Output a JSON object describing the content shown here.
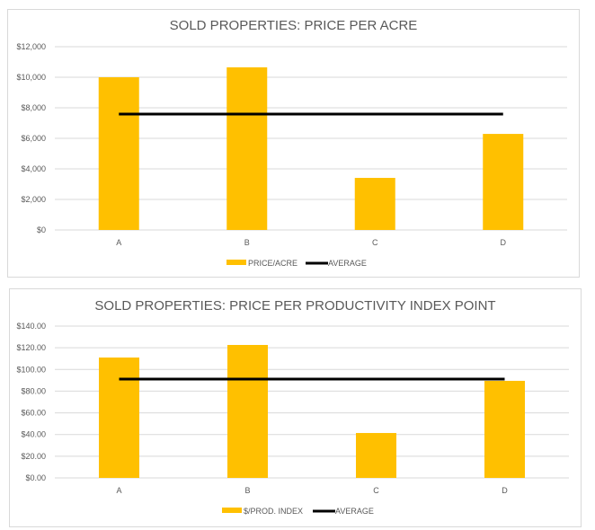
{
  "chart_data": [
    {
      "type": "bar",
      "title": "SOLD PROPERTIES: PRICE PER ACRE",
      "categories": [
        "A",
        "B",
        "C",
        "D"
      ],
      "series": [
        {
          "name": "PRICE/ACRE",
          "kind": "bar",
          "color": "#FFC000",
          "values": [
            10000,
            10650,
            3410,
            6290
          ]
        },
        {
          "name": "AVERAGE",
          "kind": "line",
          "color": "#000000",
          "values": [
            7590,
            7590,
            7590,
            7590
          ]
        }
      ],
      "ylim": [
        0,
        12000
      ],
      "yticks": [
        0,
        2000,
        4000,
        6000,
        8000,
        10000,
        12000
      ],
      "ytick_labels": [
        "$0",
        "$2,000",
        "$4,000",
        "$6,000",
        "$8,000",
        "$10,000",
        "$12,000"
      ],
      "xlabel": "",
      "ylabel": "",
      "grid": true,
      "legend": "bottom"
    },
    {
      "type": "bar",
      "title": "SOLD PROPERTIES: PRICE PER PRODUCTIVITY INDEX  POINT",
      "categories": [
        "A",
        "B",
        "C",
        "D"
      ],
      "series": [
        {
          "name": "$/PROD. INDEX",
          "kind": "bar",
          "color": "#FFC000",
          "values": [
            111,
            122.6,
            41.4,
            89.5
          ]
        },
        {
          "name": "AVERAGE",
          "kind": "line",
          "color": "#000000",
          "values": [
            91.1,
            91.1,
            91.1,
            91.1
          ]
        }
      ],
      "ylim": [
        0,
        140
      ],
      "yticks": [
        0,
        20,
        40,
        60,
        80,
        100,
        120,
        140
      ],
      "ytick_labels": [
        "$0.00",
        "$20.00",
        "$40.00",
        "$60.00",
        "$80.00",
        "$100.00",
        "$120.00",
        "$140.00"
      ],
      "xlabel": "",
      "ylabel": "",
      "grid": true,
      "legend": "bottom"
    }
  ]
}
